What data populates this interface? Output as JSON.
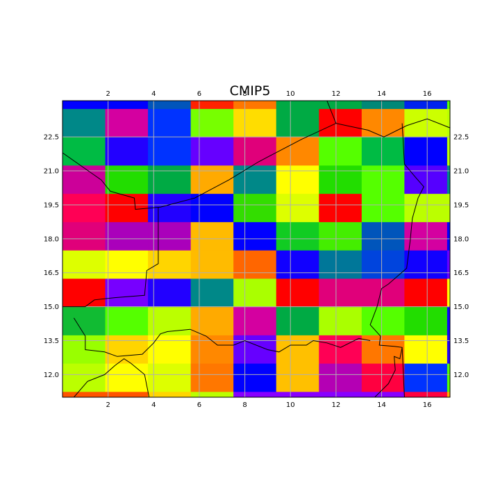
{
  "title": "CMIP5",
  "map": {
    "x_range": [
      0.0,
      17.0
    ],
    "y_range": [
      11.0,
      24.1
    ],
    "x_ticks": [
      "2",
      "4",
      "6",
      "8",
      "10",
      "12",
      "14",
      "16"
    ],
    "y_ticks": [
      "12.0",
      "13.5",
      "15.0",
      "16.5",
      "18.0",
      "19.5",
      "21.0",
      "22.5"
    ],
    "grid": true,
    "palette": "prism",
    "grid_cells": {
      "lon_edges": [
        0.0,
        1.875,
        3.75,
        5.625,
        7.5,
        9.375,
        11.25,
        13.125,
        15.0,
        16.875,
        17.0
      ],
      "lat_edges": [
        11.0,
        11.25,
        12.5,
        13.75,
        15.0,
        16.25,
        17.5,
        18.75,
        20.0,
        21.25,
        22.5,
        23.75,
        24.1
      ],
      "colors": [
        [
          "#ff5500",
          "#ff5500",
          "#ffd500",
          "#bbff00",
          "#8800ff",
          "#8800ff",
          "#8800ff",
          "#8800ff",
          "#ff0040",
          "#ffaa00"
        ],
        [
          "#bbff00",
          "#ffff00",
          "#ddff00",
          "#ff7700",
          "#0000ff",
          "#ffc000",
          "#b400b4",
          "#ff0040",
          "#0033ff",
          "#55ff00"
        ],
        [
          "#99ff00",
          "#ffd500",
          "#ffff00",
          "#ff8800",
          "#6600ff",
          "#ffc000",
          "#ff0055",
          "#ff7700",
          "#ffff00",
          "#2200ff"
        ],
        [
          "#11bb33",
          "#55ff00",
          "#bbff00",
          "#ffaa00",
          "#d400a0",
          "#00aa44",
          "#aaff00",
          "#55ff00",
          "#22dd00",
          "#1100ff"
        ],
        [
          "#ff0000",
          "#7700ff",
          "#2200ff",
          "#008888",
          "#aaff00",
          "#ff0000",
          "#e0007a",
          "#e0007a",
          "#ff0000",
          "#ffff00"
        ],
        [
          "#ddff00",
          "#ffff00",
          "#ffd500",
          "#ffbb00",
          "#ff6600",
          "#1100ff",
          "#007799",
          "#0044dd",
          "#1100ff",
          "#6600ff"
        ],
        [
          "#e0007a",
          "#aa00bb",
          "#aa00bb",
          "#ffbb00",
          "#0000ff",
          "#11cc22",
          "#44ee00",
          "#0055bb",
          "#d400a0",
          "#0000ff"
        ],
        [
          "#ff0055",
          "#ff0000",
          "#2200ff",
          "#0000ff",
          "#33dd00",
          "#ddff00",
          "#ff0000",
          "#55ff00",
          "#bbff00",
          "#bbff00"
        ],
        [
          "#cc0099",
          "#22dd00",
          "#00aa44",
          "#ffaa00",
          "#008888",
          "#ffff00",
          "#22dd00",
          "#55ff00",
          "#5500ff",
          "#008888"
        ],
        [
          "#00bb44",
          "#2200ff",
          "#0033ff",
          "#6600ff",
          "#e0007a",
          "#ff8800",
          "#55ff00",
          "#00bb44",
          "#0000ff",
          "#bbff00"
        ],
        [
          "#008888",
          "#d400a0",
          "#0033ff",
          "#77ff00",
          "#ffdd00",
          "#00aa44",
          "#ff0000",
          "#ff8800",
          "#ccff00",
          "#bbff00"
        ],
        [
          "#0000ff",
          "#0000ff",
          "#0055bb",
          "#ff2200",
          "#ff7700",
          "#00aa44",
          "#00aa44",
          "#008877",
          "#0022ee",
          "#55ff00"
        ]
      ]
    },
    "coastlines": [
      [
        [
          0.0,
          21.8
        ],
        [
          1.7,
          20.6
        ],
        [
          2.1,
          20.1
        ],
        [
          3.15,
          19.8
        ],
        [
          3.2,
          19.3
        ],
        [
          4.3,
          19.4
        ],
        [
          5.8,
          19.8
        ],
        [
          7.3,
          20.6
        ],
        [
          8.6,
          21.4
        ],
        [
          10.5,
          22.4
        ],
        [
          12.0,
          23.1
        ],
        [
          13.4,
          22.8
        ],
        [
          14.1,
          22.5
        ],
        [
          15.1,
          23.0
        ],
        [
          16.0,
          23.3
        ],
        [
          17.0,
          22.9
        ]
      ],
      [
        [
          12.0,
          23.1
        ],
        [
          11.6,
          24.1
        ]
      ],
      [
        [
          4.2,
          19.4
        ],
        [
          4.2,
          16.9
        ],
        [
          3.7,
          16.6
        ],
        [
          3.6,
          15.5
        ],
        [
          2.3,
          15.4
        ],
        [
          1.4,
          15.3
        ],
        [
          1.0,
          15.0
        ],
        [
          0.0,
          15.0
        ]
      ],
      [
        [
          14.9,
          23.1
        ],
        [
          15.0,
          21.3
        ],
        [
          15.5,
          20.7
        ],
        [
          15.85,
          20.3
        ],
        [
          15.6,
          19.8
        ],
        [
          15.35,
          18.9
        ],
        [
          15.25,
          17.9
        ],
        [
          15.1,
          16.7
        ],
        [
          14.3,
          16.0
        ],
        [
          14.0,
          15.8
        ],
        [
          13.8,
          15.0
        ],
        [
          13.5,
          14.2
        ],
        [
          13.95,
          13.7
        ],
        [
          13.9,
          13.3
        ],
        [
          14.55,
          13.25
        ],
        [
          14.9,
          13.2
        ],
        [
          14.8,
          12.7
        ],
        [
          14.55,
          12.8
        ],
        [
          14.6,
          12.2
        ],
        [
          14.3,
          11.6
        ],
        [
          13.7,
          11.0
        ]
      ],
      [
        [
          0.5,
          14.5
        ],
        [
          1.0,
          13.7
        ],
        [
          1.0,
          13.1
        ],
        [
          1.85,
          13.0
        ],
        [
          2.4,
          12.8
        ],
        [
          3.5,
          12.9
        ],
        [
          4.0,
          13.4
        ],
        [
          4.3,
          13.8
        ],
        [
          4.6,
          13.9
        ],
        [
          5.6,
          14.0
        ],
        [
          6.3,
          13.7
        ],
        [
          6.8,
          13.3
        ],
        [
          7.5,
          13.3
        ],
        [
          8.0,
          13.5
        ],
        [
          9.0,
          13.1
        ],
        [
          9.5,
          13.0
        ],
        [
          10.0,
          13.3
        ],
        [
          10.7,
          13.3
        ],
        [
          11.0,
          13.5
        ],
        [
          11.6,
          13.4
        ],
        [
          12.2,
          13.2
        ],
        [
          13.0,
          13.6
        ],
        [
          13.5,
          13.5
        ]
      ],
      [
        [
          0.5,
          11.0
        ],
        [
          1.1,
          11.7
        ],
        [
          1.85,
          12.0
        ],
        [
          2.3,
          12.4
        ],
        [
          2.7,
          12.7
        ],
        [
          3.0,
          12.5
        ],
        [
          3.6,
          12.0
        ],
        [
          3.8,
          11.0
        ]
      ],
      [
        [
          14.9,
          13.2
        ],
        [
          15.0,
          11.0
        ]
      ]
    ]
  }
}
